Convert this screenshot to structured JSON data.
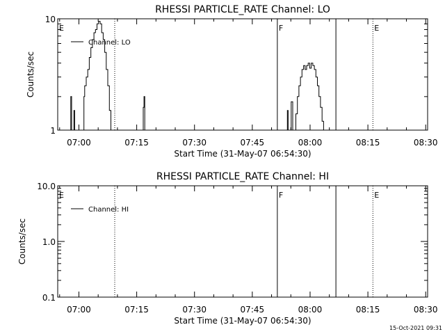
{
  "footer_timestamp": "15-Oct-2021 09:31",
  "chart_data": [
    {
      "type": "line",
      "title": "RHESSI PARTICLE_RATE Channel: LO",
      "xlabel": "Start Time (31-May-07 06:54:30)",
      "ylabel": "Counts/sec",
      "x_unit": "minutes since 06:54:30",
      "xlim": [
        0,
        96
      ],
      "ylim": [
        1,
        10
      ],
      "yscale": "log",
      "xticks": [
        {
          "value": 5.5,
          "label": "07:00"
        },
        {
          "value": 20.5,
          "label": "07:15"
        },
        {
          "value": 35.5,
          "label": "07:30"
        },
        {
          "value": 50.5,
          "label": "07:45"
        },
        {
          "value": 65.5,
          "label": "08:00"
        },
        {
          "value": 80.5,
          "label": "08:15"
        },
        {
          "value": 95.5,
          "label": "08:30"
        }
      ],
      "yticks": [
        {
          "value": 1,
          "label": "1"
        },
        {
          "value": 10,
          "label": "10"
        }
      ],
      "legend": {
        "position": "top-left",
        "entries": [
          "Channel: LO"
        ]
      },
      "markers": [
        {
          "x": 0,
          "label": "E",
          "style": "solid"
        },
        {
          "x": 14.8,
          "label": "",
          "style": "dotted"
        },
        {
          "x": 57.0,
          "label": "F",
          "style": "solid"
        },
        {
          "x": 72.2,
          "label": "",
          "style": "solid"
        },
        {
          "x": 81.8,
          "label": "E",
          "style": "dotted"
        },
        {
          "x": 96.0,
          "label": "",
          "style": "dotted"
        }
      ],
      "series": [
        {
          "name": "Channel: LO",
          "x": [
            3.2,
            3.4,
            3.6,
            4.0,
            4.2,
            4.4,
            6.6,
            6.8,
            7.0,
            7.4,
            7.8,
            8.2,
            8.6,
            9.0,
            9.4,
            9.8,
            10.2,
            10.6,
            11.0,
            11.4,
            11.8,
            12.2,
            12.6,
            13.0,
            13.4,
            13.8,
            14.2,
            14.6,
            15.0,
            15.4,
            15.8,
            16.2,
            16.6,
            17.0,
            17.4,
            17.8,
            18.2,
            18.6,
            19.0,
            19.4,
            19.8,
            20.2,
            20.6,
            21.0,
            21.4,
            21.8,
            22.0,
            22.2,
            22.4,
            22.6,
            59.4,
            59.6,
            59.8,
            60.2,
            60.6,
            61.0,
            61.4,
            61.8,
            62.2,
            62.6,
            63.0,
            63.4,
            63.8,
            64.2,
            64.6,
            65.0,
            65.4,
            65.8,
            66.2,
            66.6,
            67.0,
            67.4,
            67.8,
            68.2,
            68.6,
            69.0,
            69.4,
            69.8,
            70.2,
            70.6,
            71.0,
            71.4,
            71.8
          ],
          "values": [
            1,
            2,
            1,
            1,
            1.5,
            1,
            1,
            2,
            2.5,
            3,
            3.5,
            4.5,
            5.5,
            6.5,
            7.5,
            8.0,
            9.0,
            9.5,
            9.0,
            7.5,
            6.5,
            5.0,
            3.5,
            2.5,
            1.5,
            1,
            1,
            1,
            1,
            1,
            1,
            1,
            1,
            1,
            1,
            1,
            1,
            1,
            1,
            1,
            1,
            1,
            1,
            1,
            1,
            1,
            1,
            1.6,
            2,
            1,
            1,
            1.5,
            1,
            1,
            1.8,
            1,
            1,
            1.4,
            2.0,
            2.5,
            3.0,
            3.5,
            3.8,
            3.5,
            3.8,
            4.0,
            3.6,
            4.0,
            3.8,
            3.5,
            3.0,
            2.5,
            2.0,
            1.6,
            1.2,
            1,
            1,
            1,
            1,
            1,
            1,
            1,
            1
          ]
        }
      ]
    },
    {
      "type": "line",
      "title": "RHESSI PARTICLE_RATE Channel: HI",
      "xlabel": "Start Time (31-May-07 06:54:30)",
      "ylabel": "Counts/sec",
      "x_unit": "minutes since 06:54:30",
      "xlim": [
        0,
        96
      ],
      "ylim": [
        0.1,
        10
      ],
      "yscale": "log",
      "xticks": [
        {
          "value": 5.5,
          "label": "07:00"
        },
        {
          "value": 20.5,
          "label": "07:15"
        },
        {
          "value": 35.5,
          "label": "07:30"
        },
        {
          "value": 50.5,
          "label": "07:45"
        },
        {
          "value": 65.5,
          "label": "08:00"
        },
        {
          "value": 80.5,
          "label": "08:15"
        },
        {
          "value": 95.5,
          "label": "08:30"
        }
      ],
      "yticks": [
        {
          "value": 0.1,
          "label": "0.1"
        },
        {
          "value": 1,
          "label": "1.0"
        },
        {
          "value": 10,
          "label": "10.0"
        }
      ],
      "legend": {
        "position": "top-left",
        "entries": [
          "Channel: HI"
        ]
      },
      "markers": [
        {
          "x": 0,
          "label": "E",
          "style": "solid"
        },
        {
          "x": 14.8,
          "label": "",
          "style": "dotted"
        },
        {
          "x": 57.0,
          "label": "F",
          "style": "solid"
        },
        {
          "x": 72.2,
          "label": "",
          "style": "solid"
        },
        {
          "x": 81.8,
          "label": "E",
          "style": "dotted"
        },
        {
          "x": 96.0,
          "label": "",
          "style": "dotted"
        }
      ],
      "series": [
        {
          "name": "Channel: HI",
          "x": [],
          "values": []
        }
      ]
    }
  ]
}
